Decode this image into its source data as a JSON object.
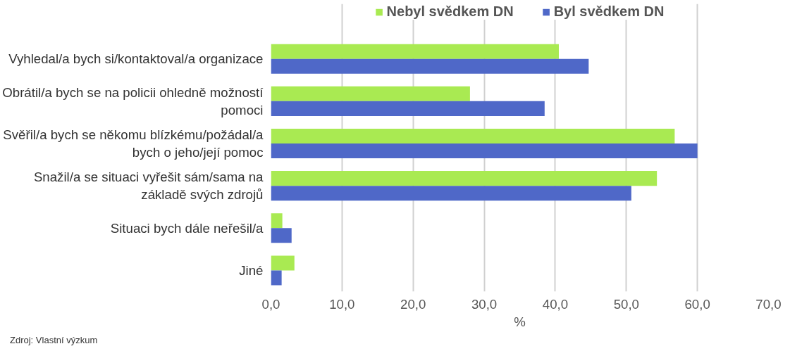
{
  "chart_data": {
    "type": "bar",
    "orientation": "horizontal",
    "xlabel": "%",
    "categories": [
      "Vyhledal/a bych si/kontaktoval/a organizace",
      "Obrátil/a bych se na policii ohledně možností pomoci",
      "Svěřil/a bych se někomu blízkému/požádal/a bych o jeho/její pomoc",
      "Snažil/a se situaci vyřešit sám/sama na základě svých zdrojů",
      "Situaci bych dále neřešil/a",
      "Jiné"
    ],
    "series": [
      {
        "name": "Nebyl svědkem DN",
        "color": "#a9ea52",
        "values": [
          40.5,
          28.0,
          56.8,
          54.3,
          1.6,
          3.3
        ]
      },
      {
        "name": "Byl svědkem DN",
        "color": "#4f68c8",
        "values": [
          44.7,
          38.5,
          60.0,
          50.7,
          2.9,
          1.5
        ]
      }
    ],
    "xlim": [
      0,
      70
    ],
    "xticks": [
      {
        "value": 0,
        "label": "0,0"
      },
      {
        "value": 10,
        "label": "10,0"
      },
      {
        "value": 20,
        "label": "20,0"
      },
      {
        "value": 30,
        "label": "30,0"
      },
      {
        "value": 40,
        "label": "40,0"
      },
      {
        "value": 50,
        "label": "50,0"
      },
      {
        "value": 60,
        "label": "60,0"
      },
      {
        "value": 70,
        "label": "70,0"
      }
    ],
    "grid": "x",
    "legend": "top",
    "annotations": [
      "Zdroj: Vlastní výzkum"
    ]
  }
}
